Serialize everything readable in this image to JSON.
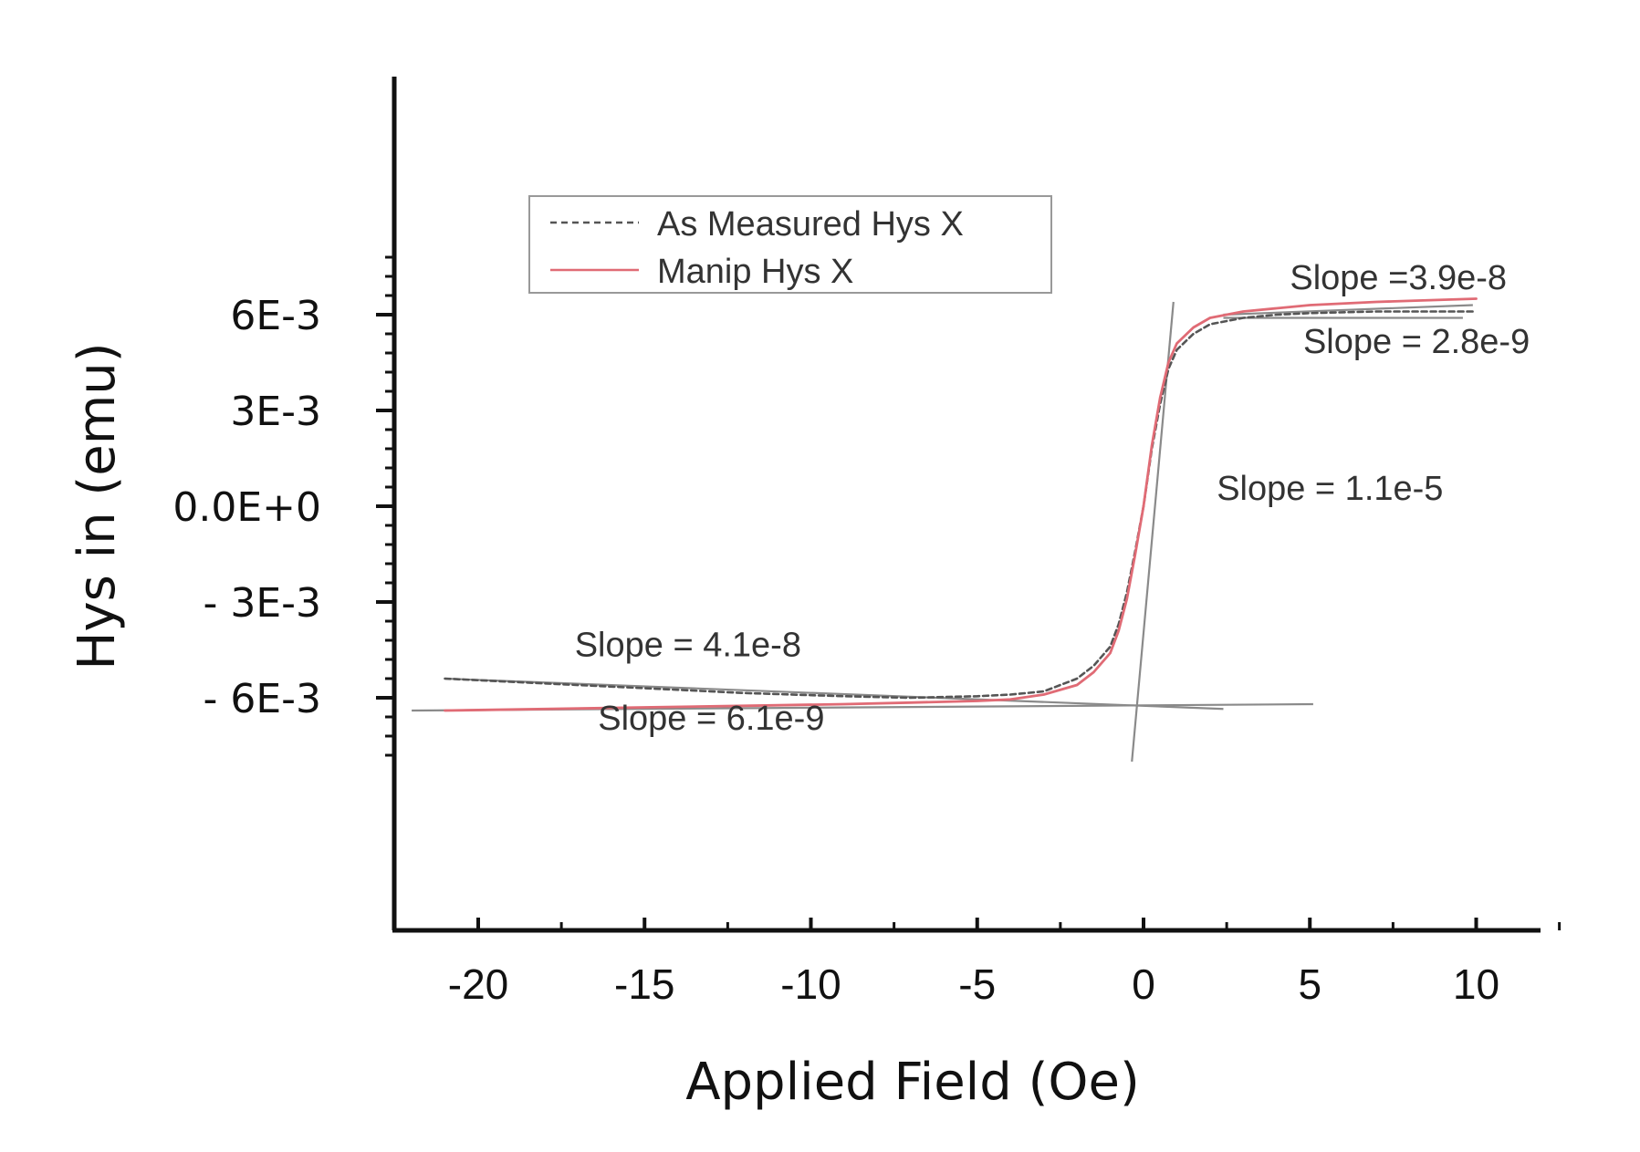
{
  "chart_data": {
    "type": "line",
    "title": "",
    "xlabel": "Applied Field (Oe)",
    "ylabel": "Hys in (emu)",
    "xlim": [
      -22,
      12.5
    ],
    "ylim": [
      -0.008,
      0.008
    ],
    "xticks": [
      -20,
      -15,
      -10,
      -5,
      0,
      5,
      10
    ],
    "xtick_labels": [
      "-20",
      "-15",
      "-10",
      "-5",
      "0",
      "5",
      "10"
    ],
    "yticks": [
      0.006,
      0.003,
      0,
      -0.003,
      -0.006
    ],
    "ytick_labels": [
      "6E-3",
      "3E-3",
      "0.0E+0",
      "- 3E-3",
      "- 6E-3"
    ],
    "grid": false,
    "legend_position": "top-left",
    "series": [
      {
        "name": "As Measured Hys X",
        "style": "dashed",
        "color": "#555555",
        "x": [
          -21,
          -18,
          -15,
          -12,
          -9,
          -7,
          -5,
          -4,
          -3,
          -2,
          -1.5,
          -1,
          -0.75,
          -0.5,
          -0.25,
          0,
          0.25,
          0.5,
          0.75,
          1,
          1.5,
          2,
          3,
          4,
          5,
          7,
          10
        ],
        "y": [
          -0.0054,
          -0.00555,
          -0.0057,
          -0.00585,
          -0.00595,
          -0.006,
          -0.00595,
          -0.0059,
          -0.0058,
          -0.0054,
          -0.005,
          -0.0044,
          -0.0037,
          -0.0027,
          -0.0014,
          0.0,
          0.0018,
          0.0032,
          0.0043,
          0.0049,
          0.0054,
          0.0057,
          0.0059,
          0.006,
          0.00605,
          0.0061,
          0.0061
        ]
      },
      {
        "name": "Manip Hys X",
        "style": "solid",
        "color": "#e06b75",
        "x": [
          -21,
          -18,
          -15,
          -12,
          -9,
          -7,
          -5,
          -4,
          -3,
          -2,
          -1.5,
          -1,
          -0.75,
          -0.5,
          -0.25,
          0,
          0.25,
          0.5,
          0.75,
          1,
          1.5,
          2,
          3,
          4,
          5,
          7,
          10
        ],
        "y": [
          -0.0064,
          -0.00635,
          -0.0063,
          -0.00625,
          -0.0062,
          -0.00615,
          -0.0061,
          -0.00605,
          -0.0059,
          -0.0056,
          -0.0052,
          -0.0046,
          -0.0039,
          -0.0029,
          -0.0015,
          0.0,
          0.0019,
          0.0034,
          0.0045,
          0.0051,
          0.0056,
          0.0059,
          0.0061,
          0.0062,
          0.0063,
          0.0064,
          0.0065
        ]
      }
    ],
    "fit_lines": [
      {
        "label": "Slope = 4.1e-8",
        "x": [
          -21,
          2.4
        ],
        "y": [
          -0.0054,
          -0.00635
        ]
      },
      {
        "label": "Slope = 6.1e-9",
        "x": [
          -22,
          5.1
        ],
        "y": [
          -0.0064,
          -0.0062
        ]
      },
      {
        "label": "Slope = 1.1e-5",
        "x": [
          -0.35,
          0.9
        ],
        "y": [
          -0.008,
          0.0064
        ]
      },
      {
        "label": "Slope =3.9e-8",
        "x": [
          2.4,
          9.9
        ],
        "y": [
          0.006,
          0.0063
        ]
      },
      {
        "label": "Slope = 2.8e-9",
        "x": [
          2.4,
          9.6
        ],
        "y": [
          0.0059,
          0.0059
        ]
      }
    ],
    "annotations": [
      {
        "text": "Slope =3.9e-8",
        "x": 4.4,
        "y": 0.0068
      },
      {
        "text": "Slope = 2.8e-9",
        "x": 4.8,
        "y": 0.0048
      },
      {
        "text": "Slope = 1.1e-5",
        "x": 2.2,
        "y": 0.0002
      },
      {
        "text": "Slope = 4.1e-8",
        "x": -17.1,
        "y": -0.0047
      },
      {
        "text": "Slope = 6.1e-9",
        "x": -16.4,
        "y": -0.007
      }
    ]
  }
}
